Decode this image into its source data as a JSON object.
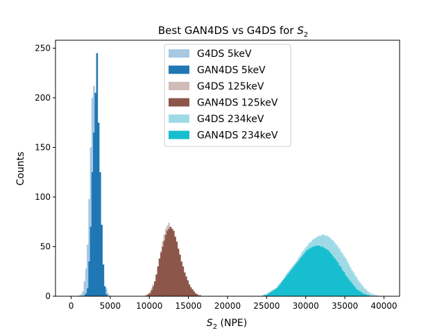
{
  "chart_data": {
    "type": "bar",
    "title": "Best GAN4DS vs G4DS for S₂",
    "title_prefix": "Best GAN4DS vs G4DS for ",
    "xlabel": "S₂ (NPE)",
    "xlabel_suffix": " (NPE)",
    "ylabel": "Counts",
    "xlim": [
      -2000,
      42000
    ],
    "ylim": [
      0,
      258
    ],
    "xticks": [
      0,
      5000,
      10000,
      15000,
      20000,
      25000,
      30000,
      35000,
      40000
    ],
    "yticks": [
      0,
      50,
      100,
      150,
      200,
      250
    ],
    "grid": false,
    "legend_position": "top-center",
    "series": [
      {
        "name": "G4DS 5keV",
        "color": "#a6c8e3",
        "bin_start": 200,
        "bin_width": 200,
        "counts": [
          0,
          0,
          0,
          0,
          1,
          2,
          5,
          15,
          28,
          52,
          98,
          150,
          200,
          212,
          198,
          155,
          107,
          60,
          28,
          18,
          10,
          8,
          3,
          1,
          0
        ]
      },
      {
        "name": "GAN4DS 5keV",
        "color": "#1f77b4",
        "bin_start": 200,
        "bin_width": 200,
        "counts": [
          0,
          0,
          0,
          0,
          0,
          0,
          0,
          1,
          3,
          8,
          35,
          70,
          125,
          165,
          205,
          245,
          175,
          125,
          72,
          32,
          10,
          2,
          0,
          0,
          0
        ]
      },
      {
        "name": "G4DS 125keV",
        "color": "#d1bbb6",
        "bin_start": 9400,
        "bin_width": 200,
        "counts": [
          1,
          2,
          3,
          5,
          8,
          12,
          14,
          20,
          30,
          38,
          46,
          55,
          62,
          68,
          71,
          74,
          70,
          66,
          61,
          56,
          50,
          44,
          38,
          33,
          27,
          22,
          17,
          13,
          10,
          7,
          5,
          3,
          2,
          2,
          1,
          1,
          0
        ]
      },
      {
        "name": "GAN4DS 125keV",
        "color": "#8c564b",
        "bin_start": 9400,
        "bin_width": 200,
        "counts": [
          0,
          1,
          2,
          3,
          6,
          10,
          15,
          22,
          30,
          38,
          44,
          50,
          56,
          62,
          66,
          68,
          70,
          68,
          66,
          60,
          55,
          48,
          42,
          35,
          30,
          24,
          20,
          16,
          12,
          9,
          7,
          5,
          3,
          2,
          1,
          1,
          0
        ]
      },
      {
        "name": "G4DS 234keV",
        "color": "#9edae5",
        "bin_start": 24400,
        "bin_width": 200,
        "counts": [
          1,
          2,
          2,
          3,
          4,
          5,
          6,
          7,
          8,
          9,
          11,
          13,
          15,
          17,
          19,
          22,
          24,
          26,
          28,
          30,
          32,
          34,
          36,
          39,
          41,
          44,
          46,
          48,
          50,
          52,
          54,
          55,
          57,
          58,
          59,
          60,
          61,
          61,
          62,
          62,
          61,
          61,
          60,
          59,
          57,
          56,
          54,
          52,
          50,
          48,
          45,
          43,
          40,
          38,
          35,
          32,
          29,
          26,
          24,
          21,
          19,
          16,
          14,
          12,
          10,
          8,
          7,
          5,
          4,
          3,
          2,
          2,
          1,
          1,
          0
        ]
      },
      {
        "name": "GAN4DS 234keV",
        "color": "#17becf",
        "bin_start": 24400,
        "bin_width": 200,
        "counts": [
          0,
          1,
          1,
          2,
          3,
          4,
          5,
          6,
          7,
          8,
          10,
          12,
          14,
          16,
          18,
          20,
          22,
          24,
          26,
          28,
          30,
          32,
          34,
          36,
          38,
          40,
          42,
          44,
          46,
          47,
          48,
          49,
          50,
          50,
          51,
          51,
          51,
          50,
          50,
          49,
          48,
          47,
          46,
          44,
          42,
          40,
          38,
          36,
          34,
          31,
          29,
          26,
          24,
          21,
          19,
          17,
          15,
          13,
          11,
          9,
          7,
          6,
          5,
          4,
          3,
          2,
          2,
          1,
          1,
          0,
          0,
          0,
          0,
          0,
          0
        ]
      }
    ]
  }
}
